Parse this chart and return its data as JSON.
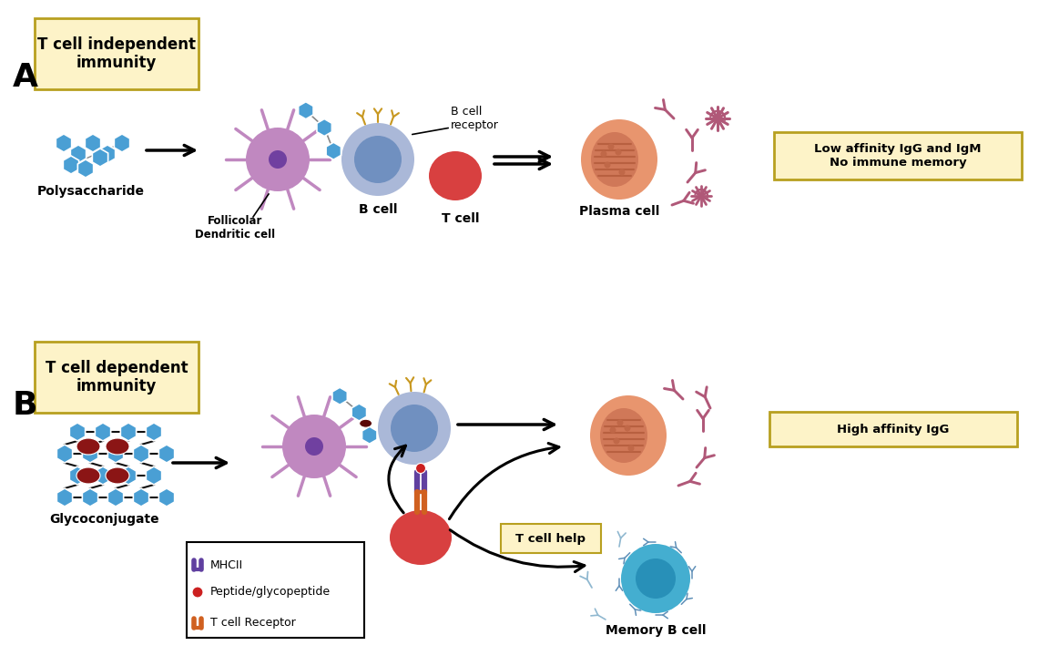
{
  "bg_color": "#ffffff",
  "label_A": "A",
  "label_B": "B",
  "panel_A_title": "T cell independent\nimmunity",
  "panel_B_title": "T cell dependent\nimmunity",
  "box_fill": "#fdf3c8",
  "box_edge": "#b8a020",
  "polysaccharide_label": "Polysaccharide",
  "follicular_label": "Follicolar\nDendritic cell",
  "bcell_label": "B cell",
  "tcell_label": "T cell",
  "bcell_receptor_label": "B cell\nreceptor",
  "plasma_cell_label": "Plasma cell",
  "low_affinity_label": "Low affinity IgG and IgM\nNo immune memory",
  "glycoconjugate_label": "Glycoconjugate",
  "high_affinity_label": "High affinity IgG",
  "memory_bcell_label": "Memory B cell",
  "tcell_help_label": "T cell help",
  "legend_mhcii": "MHCII",
  "legend_peptide": "Peptide/glycopeptide",
  "legend_tcr": "T cell Receptor",
  "blue_hex": "#4a9fd4",
  "purple_cell": "#c088c0",
  "blue_cell_outer": "#aab8d8",
  "blue_cell_inner": "#7090c0",
  "red_cell": "#d84040",
  "orange_cell": "#e8956e",
  "orange_inner": "#d07858",
  "pink_ab": "#b05878",
  "cyan_cell": "#44aed0",
  "cyan_ab": "#6090b8",
  "dark_red_oval": "#8b1515",
  "gold": "#c89820",
  "mhcii_color": "#6040a0",
  "tcr_color": "#d06020",
  "black": "#000000",
  "grid_line": "#222222"
}
